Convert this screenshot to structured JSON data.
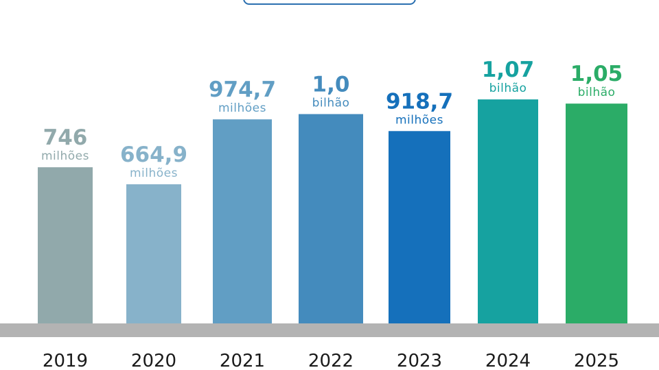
{
  "chart_data": {
    "type": "bar",
    "categories": [
      "2019",
      "2020",
      "2021",
      "2022",
      "2023",
      "2024",
      "2025"
    ],
    "values": [
      746,
      664.9,
      974.7,
      1000,
      918.7,
      1070,
      1050
    ],
    "value_unit": "milhões",
    "data_labels": [
      {
        "value": "746",
        "unit": "milhões"
      },
      {
        "value": "664,9",
        "unit": "milhões"
      },
      {
        "value": "974,7",
        "unit": "milhões"
      },
      {
        "value": "1,0",
        "unit": "bilhão"
      },
      {
        "value": "918,7",
        "unit": "milhões"
      },
      {
        "value": "1,07",
        "unit": "bilhão"
      },
      {
        "value": "1,05",
        "unit": "bilhão"
      }
    ],
    "bar_colors": [
      "#91a9ab",
      "#87b2ca",
      "#619ec4",
      "#448bbd",
      "#1570bb",
      "#16a2a0",
      "#2bac67"
    ],
    "label_colors": [
      "#91a9ab",
      "#87b2ca",
      "#619ec4",
      "#448bbd",
      "#1570bb",
      "#16a2a0",
      "#2bac67"
    ],
    "baseline_color": "#b3b3b3",
    "title": "",
    "xlabel": "",
    "ylabel": "",
    "ylim": [
      0,
      1150
    ],
    "grid": false,
    "legend": "none"
  }
}
